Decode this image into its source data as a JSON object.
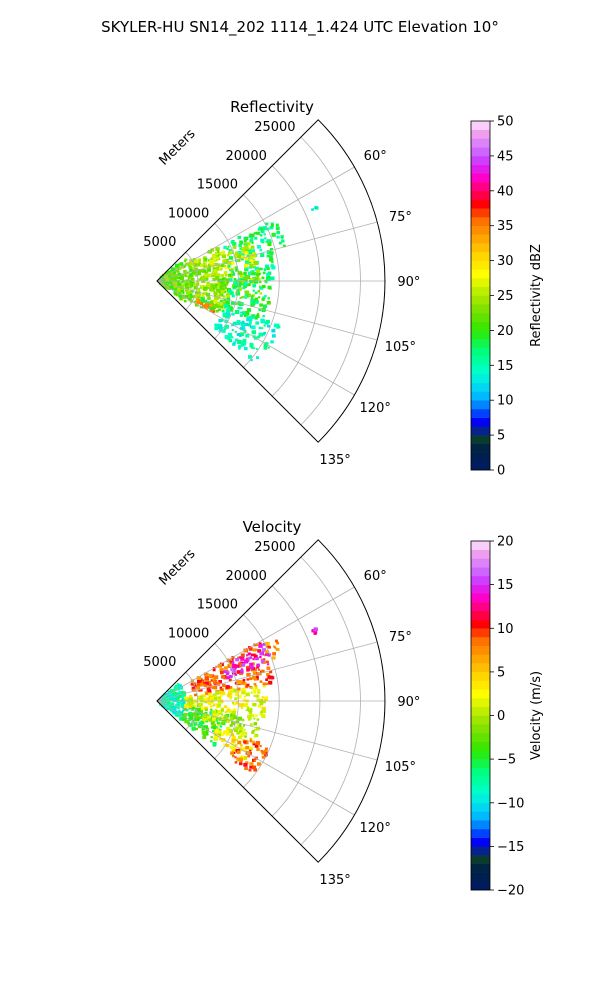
{
  "figure": {
    "title": "SKYLER-HU  SN14_202  1114_1.424 UTC Elevation 10°"
  },
  "chart_data": [
    {
      "type": "polar-sector",
      "title": "Reflectivity",
      "radial_label": "Meters",
      "radial_ticks": [
        5000,
        10000,
        15000,
        20000,
        25000
      ],
      "radial_tick_labels": [
        "5000",
        "10000",
        "15000",
        "20000",
        "25000"
      ],
      "r_max": 28000,
      "angle_range_deg": [
        45,
        135
      ],
      "angle_ticks": [
        60,
        75,
        90,
        105,
        120,
        135
      ],
      "angle_tick_labels": [
        "60°",
        "75°",
        "90°",
        "105°",
        "120°",
        "135°"
      ],
      "grid": true,
      "colorbar": {
        "label": "Reflectivity dBZ",
        "min": 0,
        "max": 50,
        "ticks": [
          0,
          5,
          10,
          15,
          20,
          25,
          30,
          35,
          40,
          45,
          50
        ],
        "tick_labels": [
          "0",
          "5",
          "10",
          "15",
          "20",
          "25",
          "30",
          "35",
          "40",
          "45",
          "50"
        ]
      },
      "regions": [
        {
          "az_range": [
            52,
            128
          ],
          "r_range": [
            500,
            4500
          ],
          "value": 22
        },
        {
          "az_range": [
            60,
            112
          ],
          "r_range": [
            4500,
            9000
          ],
          "value": 24
        },
        {
          "az_range": [
            62,
            90
          ],
          "r_range": [
            9000,
            14500
          ],
          "value": 17
        },
        {
          "az_range": [
            66,
            82
          ],
          "r_range": [
            7000,
            12500
          ],
          "value": 26
        },
        {
          "az_range": [
            84,
            102
          ],
          "r_range": [
            7000,
            13000
          ],
          "value": 23
        },
        {
          "az_range": [
            90,
            112
          ],
          "r_range": [
            9000,
            14000
          ],
          "value": 18
        },
        {
          "az_range": [
            112,
            122
          ],
          "r_range": [
            4500,
            9000
          ],
          "value": 20
        },
        {
          "az_range": [
            114,
            120
          ],
          "r_range": [
            5500,
            8000
          ],
          "value": 34
        },
        {
          "az_range": [
            110,
            130
          ],
          "r_range": [
            9000,
            16000
          ],
          "value": 15
        },
        {
          "az_range": [
            62,
            76
          ],
          "r_range": [
            14500,
            16500
          ],
          "value": 18
        },
        {
          "az_range": [
            65,
            67
          ],
          "r_range": [
            21000,
            21800
          ],
          "value": 14
        }
      ]
    },
    {
      "type": "polar-sector",
      "title": "Velocity",
      "radial_label": "Meters",
      "radial_ticks": [
        5000,
        10000,
        15000,
        20000,
        25000
      ],
      "radial_tick_labels": [
        "5000",
        "10000",
        "15000",
        "20000",
        "25000"
      ],
      "r_max": 28000,
      "angle_range_deg": [
        45,
        135
      ],
      "angle_ticks": [
        60,
        75,
        90,
        105,
        120,
        135
      ],
      "angle_tick_labels": [
        "60°",
        "75°",
        "90°",
        "105°",
        "120°",
        "135°"
      ],
      "grid": true,
      "colorbar": {
        "label": "Velocity (m/s)",
        "min": -20,
        "max": 20,
        "ticks": [
          -20,
          -15,
          -10,
          -5,
          0,
          5,
          10,
          15,
          20
        ],
        "tick_labels": [
          "−20",
          "−15",
          "−10",
          "−5",
          "0",
          "5",
          "10",
          "15",
          "20"
        ]
      },
      "regions": [
        {
          "az_range": [
            52,
            128
          ],
          "r_range": [
            500,
            3500
          ],
          "value": -8
        },
        {
          "az_range": [
            100,
            128
          ],
          "r_range": [
            3500,
            9000
          ],
          "value": -4
        },
        {
          "az_range": [
            60,
            82
          ],
          "r_range": [
            4500,
            14500
          ],
          "value": 9
        },
        {
          "az_range": [
            62,
            72
          ],
          "r_range": [
            9000,
            15000
          ],
          "value": 14
        },
        {
          "az_range": [
            82,
            100
          ],
          "r_range": [
            3500,
            13500
          ],
          "value": 2
        },
        {
          "az_range": [
            98,
            112
          ],
          "r_range": [
            6000,
            13000
          ],
          "value": 0
        },
        {
          "az_range": [
            112,
            124
          ],
          "r_range": [
            8000,
            13000
          ],
          "value": 3
        },
        {
          "az_range": [
            112,
            128
          ],
          "r_range": [
            11000,
            15000
          ],
          "value": 9
        },
        {
          "az_range": [
            62,
            70
          ],
          "r_range": [
            14500,
            16500
          ],
          "value": 8
        },
        {
          "az_range": [
            65,
            67
          ],
          "r_range": [
            21000,
            21800
          ],
          "value": 14
        }
      ]
    }
  ]
}
